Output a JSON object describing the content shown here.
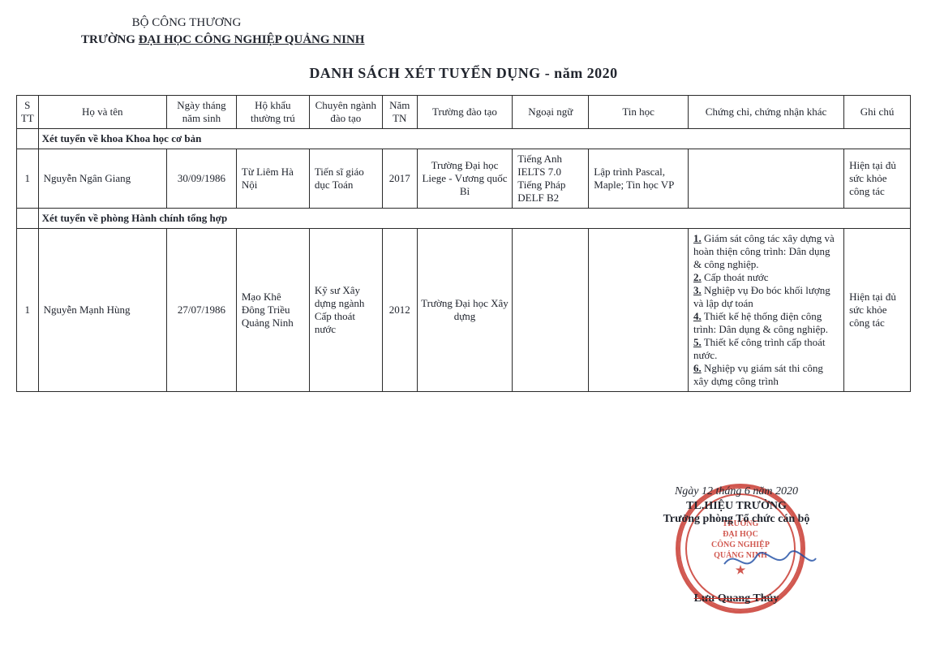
{
  "header": {
    "ministry": "BỘ CÔNG THƯƠNG",
    "school_prefix": "TRƯỜNG ",
    "school_underlined": "ĐẠI HỌC CÔNG NGHIỆP QUẢNG NINH"
  },
  "title": "DANH SÁCH  XÉT TUYỂN DỤNG - năm 2020",
  "columns": {
    "stt": "S TT",
    "name": "Họ và tên",
    "dob": "Ngày tháng năm sinh",
    "addr": "Hộ khẩu thường trú",
    "major": "Chuyên ngành đào tạo",
    "year": "Năm TN",
    "school": "Trường đào tạo",
    "lang": "Ngoại ngữ",
    "it": "Tin học",
    "cert": "Chứng chỉ, chứng nhận khác",
    "note": "Ghi chú"
  },
  "sections": [
    {
      "heading": "Xét tuyển về khoa Khoa học cơ bản",
      "rows": [
        {
          "stt": "1",
          "name": "Nguyễn Ngân Giang",
          "dob": "30/09/1986",
          "addr": "Từ Liêm Hà Nội",
          "major": "Tiến sĩ giáo dục Toán",
          "year": "2017",
          "school": "Trường Đại học Liege - Vương quốc Bỉ",
          "lang": "Tiếng Anh IELTS 7.0 Tiếng Pháp DELF B2",
          "it": "Lập trình Pascal, Maple; Tin học VP",
          "cert_items": [],
          "note": "Hiện tại đủ sức khỏe công tác"
        }
      ]
    },
    {
      "heading": "Xét tuyển về phòng Hành chính tổng hợp",
      "rows": [
        {
          "stt": "1",
          "name": "Nguyễn Mạnh Hùng",
          "dob": "27/07/1986",
          "addr": "Mạo Khê Đông Triều Quảng Ninh",
          "major": "Kỹ sư Xây dựng ngành Cấp thoát nước",
          "year": "2012",
          "school": "Trường Đại học Xây dựng",
          "lang": "",
          "it": "",
          "cert_items": [
            "Giám sát công tác xây dựng và hoàn thiện công trình: Dân dụng & công nghiệp.",
            "Cấp thoát nước",
            "Nghiệp vụ Đo bóc khối lượng và lập dự toán",
            "Thiết kế hệ thống điện công trình: Dân dụng & công nghiệp.",
            "Thiết kế công trình cấp thoát nước.",
            "Nghiệp vụ giám sát thi công xây dựng công trình"
          ],
          "note": "Hiện tại đủ sức khỏe công tác"
        }
      ]
    }
  ],
  "signature": {
    "date": "Ngày 12 tháng 6 năm 2020",
    "title1": "TL.HIỆU TRƯỞNG",
    "title2": "Trưởng phòng Tổ chức cán bộ",
    "name": "Lưu Quang Thủy"
  },
  "stamp": {
    "line1": "TRƯỜNG",
    "line2": "ĐẠI HỌC",
    "line3": "CÔNG NGHIỆP",
    "line4": "QUẢNG NINH",
    "color": "#c7342a"
  },
  "style": {
    "border_color": "#2a2a2a",
    "text_color": "#22262f",
    "background": "#ffffff",
    "title_fontsize": 18,
    "cell_fontsize": 13
  }
}
